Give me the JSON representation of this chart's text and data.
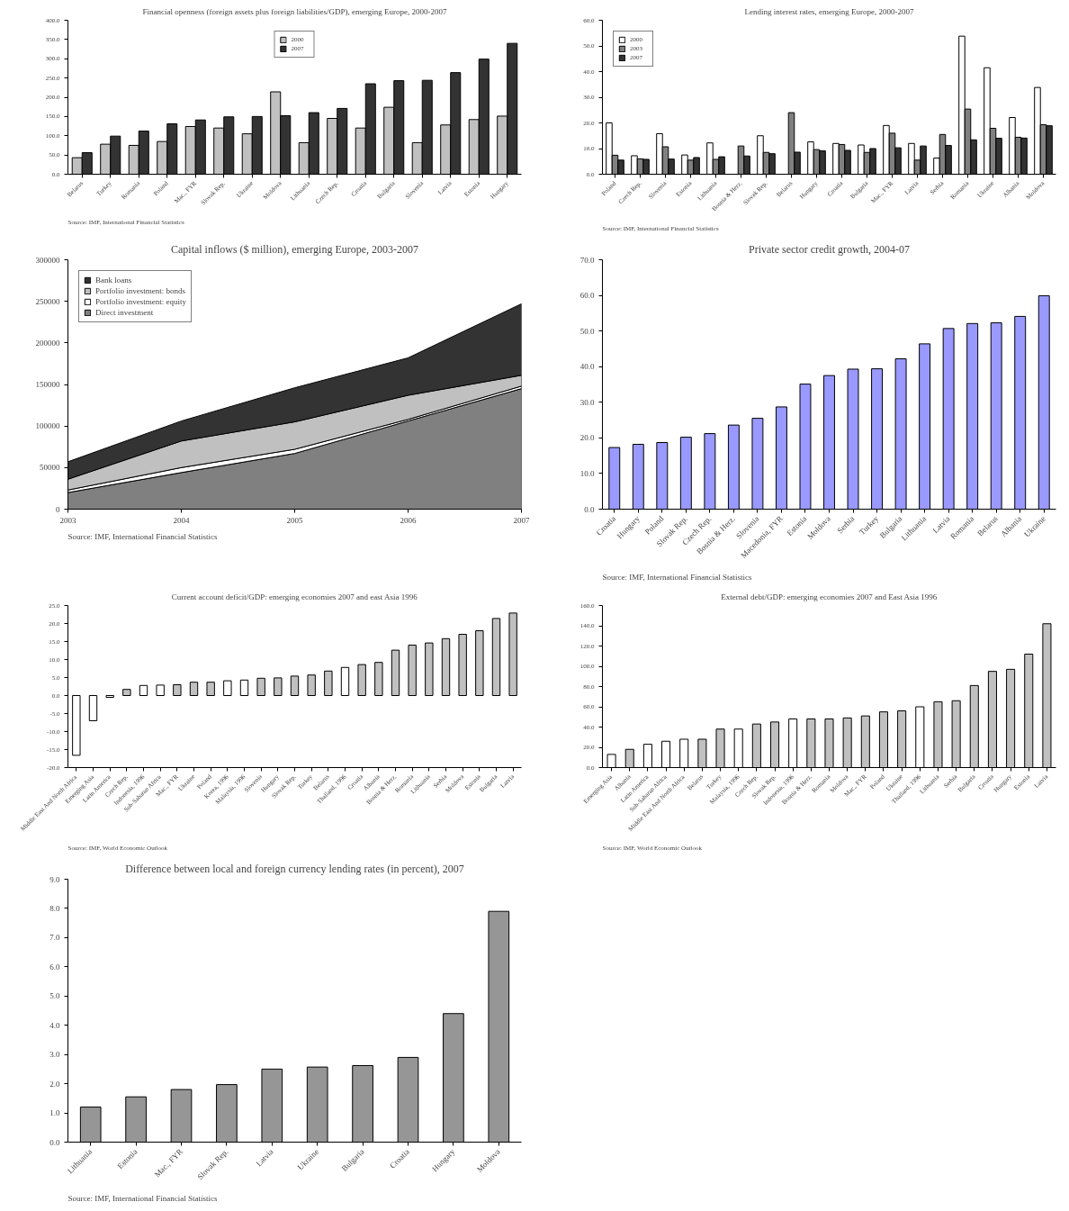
{
  "chart_data": [
    {
      "type": "bar",
      "title": "Financial openness (foreign assets plus foreign liabilities/GDP), emerging Europe, 2000-2007",
      "categories": [
        "Belarus",
        "Turkey",
        "Romania",
        "Poland",
        "Mac., FYR",
        "Slovak Rep.",
        "Ukraine",
        "Moldova",
        "Lithuania",
        "Czech Rep.",
        "Croatia",
        "Bulgaria",
        "Slovenia",
        "Latvia",
        "Estonia",
        "Hungary"
      ],
      "series": [
        {
          "name": "2000",
          "color": "#c0c0c0",
          "values": [
            43,
            78,
            75,
            85,
            124,
            120,
            105,
            214,
            82,
            145,
            120,
            174,
            82,
            128,
            142,
            151
          ]
        },
        {
          "name": "2007",
          "color": "#333333",
          "values": [
            56,
            99,
            112,
            131,
            141,
            149,
            150,
            152,
            160,
            171,
            235,
            243,
            244,
            264,
            299,
            340
          ]
        }
      ],
      "ylim": [
        0,
        400
      ],
      "yticks": [
        {
          "value": 0,
          "label": "0.0"
        },
        {
          "value": 50,
          "label": "50.0"
        },
        {
          "value": 100,
          "label": "100.0"
        },
        {
          "value": 150,
          "label": "150.0"
        },
        {
          "value": 200,
          "label": "200.0"
        },
        {
          "value": 250,
          "label": "250.0"
        },
        {
          "value": 300,
          "label": "300.0"
        },
        {
          "value": 350,
          "label": "350.0"
        },
        {
          "value": 400,
          "label": "400.0"
        }
      ],
      "legend": "top",
      "annotations": [
        "Source: IMF, International Financial Statistics"
      ]
    },
    {
      "type": "bar",
      "title": "Lending interest rates, emerging Europe, 2000-2007",
      "categories": [
        "Poland",
        "Czech Rep.",
        "Slovenia",
        "Estonia",
        "Lithuania",
        "Bosnia & Herz.",
        "Slovak Rep.",
        "Belarus",
        "Hungary",
        "Croatia",
        "Bulgaria",
        "Mac., FYR",
        "Latvia",
        "Serbia",
        "Romania",
        "Ukraine",
        "Albania",
        "Moldova"
      ],
      "series": [
        {
          "name": "2000",
          "color": "#ffffff",
          "values": [
            20.0,
            7.2,
            15.8,
            7.5,
            12.2,
            null,
            15.0,
            null,
            12.6,
            12.0,
            11.4,
            19.0,
            12.0,
            6.3,
            53.8,
            41.5,
            22.1,
            33.8
          ]
        },
        {
          "name": "2003",
          "color": "#808080",
          "values": [
            7.4,
            6.0,
            10.7,
            5.5,
            5.8,
            11.0,
            8.5,
            24.0,
            9.6,
            11.6,
            8.5,
            16.0,
            5.5,
            15.5,
            25.4,
            17.9,
            14.4,
            19.3
          ]
        },
        {
          "name": "2007",
          "color": "#333333",
          "values": [
            5.5,
            5.8,
            5.9,
            6.5,
            6.8,
            7.1,
            8.0,
            8.6,
            9.1,
            9.3,
            10.0,
            10.3,
            11.0,
            11.2,
            13.4,
            14.0,
            14.1,
            18.9
          ]
        }
      ],
      "ylim": [
        0,
        60
      ],
      "yticks": [
        {
          "value": 0,
          "label": "0.0"
        },
        {
          "value": 10,
          "label": "10.0"
        },
        {
          "value": 20,
          "label": "20.0"
        },
        {
          "value": 30,
          "label": "30.0"
        },
        {
          "value": 40,
          "label": "40.0"
        },
        {
          "value": 50,
          "label": "50.0"
        },
        {
          "value": 60,
          "label": "60.0"
        }
      ],
      "legend": "top left",
      "annotations": [
        "Source: IMF, International Financial Statistics"
      ]
    },
    {
      "type": "area",
      "title": "Capital inflows ($ million), emerging Europe, 2003-2007",
      "stacked": true,
      "x": [
        2003,
        2004,
        2005,
        2006,
        2007
      ],
      "series": [
        {
          "name": "Direct investment",
          "color": "#808080",
          "values": [
            20000,
            44000,
            67000,
            106000,
            145000
          ]
        },
        {
          "name": "Portfolio investment: equity",
          "color": "#ffffff",
          "values": [
            3000,
            6000,
            5000,
            2000,
            3000
          ]
        },
        {
          "name": "Portfolio investment: bonds",
          "color": "#c0c0c0",
          "values": [
            13000,
            32000,
            33000,
            29000,
            13000
          ]
        },
        {
          "name": "Bank loans",
          "color": "#333333",
          "values": [
            21000,
            24000,
            41000,
            45000,
            86000
          ]
        }
      ],
      "xlim": [
        2003,
        2007
      ],
      "xticks": [
        2003,
        2004,
        2005,
        2006,
        2007
      ],
      "ylim": [
        0,
        300000
      ],
      "yticks": [
        0,
        50000,
        100000,
        150000,
        200000,
        250000,
        300000
      ],
      "legend": "top left",
      "annotations": [
        "Source: IMF, International Financial Statistics"
      ]
    },
    {
      "type": "bar",
      "title": "Private sector credit growth, 2004-07",
      "categories": [
        "Croatia",
        "Hungary",
        "Poland",
        "Slovak Rep.",
        "Czech Rep.",
        "Bosnia & Herz.",
        "Slovenia",
        "Macedonia, FYR",
        "Estonia",
        "Moldova",
        "Serbia",
        "Turkey",
        "Bulgaria",
        "Lithuania",
        "Latvia",
        "Romania",
        "Belarus",
        "Albania",
        "Ukraine"
      ],
      "values": [
        17.3,
        18.2,
        18.7,
        20.2,
        21.2,
        23.6,
        25.5,
        28.7,
        35.1,
        37.5,
        39.3,
        39.4,
        42.2,
        46.4,
        50.7,
        52.1,
        52.3,
        54.1,
        59.9
      ],
      "color": "#9999ff",
      "ylim": [
        0,
        70
      ],
      "yticks": [
        {
          "value": 0,
          "label": "0.0"
        },
        {
          "value": 10,
          "label": "10.0"
        },
        {
          "value": 20,
          "label": "20.0"
        },
        {
          "value": 30,
          "label": "30.0"
        },
        {
          "value": 40,
          "label": "40.0"
        },
        {
          "value": 50,
          "label": "50.0"
        },
        {
          "value": 60,
          "label": "60.0"
        },
        {
          "value": 70,
          "label": "70.0"
        }
      ],
      "annotations": [
        "Source: IMF, International Financial Statistics"
      ]
    },
    {
      "type": "bar",
      "title": "Current account deficit/GDP: emerging economies 2007 and east Asia 1996",
      "categories": [
        "Middle East And North Africa",
        "Emerging Asia",
        "Latin America",
        "Czech Rep.",
        "Indonesia, 1996",
        "Sub-Saharan Africa",
        "Mac., FYR",
        "Ukraine",
        "Poland",
        "Korea, 1996",
        "Malaysia, 1996",
        "Slovenia",
        "Hungary",
        "Slovak Rep.",
        "Turkey",
        "Belarus",
        "Thailand, 1996",
        "Croatia",
        "Albania",
        "Bosnia & Herz.",
        "Romania",
        "Lithuania",
        "Serbia",
        "Moldova",
        "Estonia",
        "Bulgaria",
        "Latvia"
      ],
      "values": [
        -16.6,
        -7.0,
        -0.5,
        1.7,
        2.8,
        2.9,
        3.0,
        3.7,
        3.7,
        4.1,
        4.3,
        4.8,
        4.9,
        5.4,
        5.7,
        6.8,
        7.8,
        8.6,
        9.2,
        12.6,
        14.0,
        14.6,
        15.8,
        17.0,
        18.0,
        21.4,
        22.9
      ],
      "colors": [
        "#ffffff",
        "#ffffff",
        "#ffffff",
        "#c0c0c0",
        "#ffffff",
        "#ffffff",
        "#c0c0c0",
        "#c0c0c0",
        "#c0c0c0",
        "#ffffff",
        "#ffffff",
        "#c0c0c0",
        "#c0c0c0",
        "#c0c0c0",
        "#c0c0c0",
        "#c0c0c0",
        "#ffffff",
        "#c0c0c0",
        "#c0c0c0",
        "#c0c0c0",
        "#c0c0c0",
        "#c0c0c0",
        "#c0c0c0",
        "#c0c0c0",
        "#c0c0c0",
        "#c0c0c0",
        "#c0c0c0"
      ],
      "ylim": [
        -20,
        25
      ],
      "yticks": [
        {
          "value": -20,
          "label": "-20.0"
        },
        {
          "value": -15,
          "label": "-15.0"
        },
        {
          "value": -10,
          "label": "-10.0"
        },
        {
          "value": -5,
          "label": "-5.0"
        },
        {
          "value": 0,
          "label": "0.0"
        },
        {
          "value": 5,
          "label": "5.0"
        },
        {
          "value": 10,
          "label": "10.0"
        },
        {
          "value": 15,
          "label": "15.0"
        },
        {
          "value": 20,
          "label": "20.0"
        },
        {
          "value": 25,
          "label": "25.0"
        }
      ],
      "annotations": [
        "Source: IMF, World Economic Outlook"
      ]
    },
    {
      "type": "bar",
      "title": "External debt/GDP: emerging economies 2007 and East Asia 1996",
      "categories": [
        "Emerging Asia",
        "Albania",
        "Latin America",
        "Sub-Saharan Africa",
        "Middle East And North Africa",
        "Belarus",
        "Turkey",
        "Malaysia, 1996",
        "Czech Rep.",
        "Slovak Rep.",
        "Indonesia, 1996",
        "Bosnia & Herz.",
        "Romania",
        "Moldova",
        "Mac., FYR",
        "Poland",
        "Ukraine",
        "Thailand, 1996",
        "Lithuania",
        "Serbia",
        "Bulgaria",
        "Croatia",
        "Hungary",
        "Estonia",
        "Latvia"
      ],
      "values": [
        13,
        18,
        23,
        26,
        28,
        28,
        38,
        38,
        43,
        45,
        48,
        48,
        48,
        49,
        51,
        55,
        56,
        60,
        65,
        66,
        81,
        95,
        97,
        112,
        142
      ],
      "colors": [
        "#ffffff",
        "#c0c0c0",
        "#ffffff",
        "#ffffff",
        "#ffffff",
        "#c0c0c0",
        "#c0c0c0",
        "#ffffff",
        "#c0c0c0",
        "#c0c0c0",
        "#ffffff",
        "#c0c0c0",
        "#c0c0c0",
        "#c0c0c0",
        "#c0c0c0",
        "#c0c0c0",
        "#c0c0c0",
        "#ffffff",
        "#c0c0c0",
        "#c0c0c0",
        "#c0c0c0",
        "#c0c0c0",
        "#c0c0c0",
        "#c0c0c0",
        "#c0c0c0"
      ],
      "ylim": [
        0,
        160
      ],
      "yticks": [
        {
          "value": 0,
          "label": "0.0"
        },
        {
          "value": 20,
          "label": "20.0"
        },
        {
          "value": 40,
          "label": "40.0"
        },
        {
          "value": 60,
          "label": "60.0"
        },
        {
          "value": 80,
          "label": "80.0"
        },
        {
          "value": 100,
          "label": "100.0"
        },
        {
          "value": 120,
          "label": "120.0"
        },
        {
          "value": 140,
          "label": "140.0"
        },
        {
          "value": 160,
          "label": "160.0"
        }
      ],
      "annotations": [
        "Source: IMF, World Economic Outlook"
      ]
    },
    {
      "type": "bar",
      "title": "Difference between local and foreign currency lending rates (in percent), 2007",
      "categories": [
        "Lithuania",
        "Estonia",
        "Mac., FYR",
        "Slovak Rep.",
        "Latvia",
        "Ukraine",
        "Bulgaria",
        "Croatia",
        "Hungary",
        "Moldova"
      ],
      "values": [
        1.2,
        1.55,
        1.8,
        1.97,
        2.5,
        2.57,
        2.62,
        2.9,
        4.4,
        7.9
      ],
      "color": "#969696",
      "ylim": [
        0,
        9
      ],
      "yticks": [
        {
          "value": 0,
          "label": "0.0"
        },
        {
          "value": 1,
          "label": "1.0"
        },
        {
          "value": 2,
          "label": "2.0"
        },
        {
          "value": 3,
          "label": "3.0"
        },
        {
          "value": 4,
          "label": "4.0"
        },
        {
          "value": 5,
          "label": "5.0"
        },
        {
          "value": 6,
          "label": "6.0"
        },
        {
          "value": 7,
          "label": "7.0"
        },
        {
          "value": 8,
          "label": "8.0"
        },
        {
          "value": 9,
          "label": "9.0"
        }
      ],
      "annotations": [
        "Source: IMF, International Financial Statistics"
      ]
    }
  ]
}
